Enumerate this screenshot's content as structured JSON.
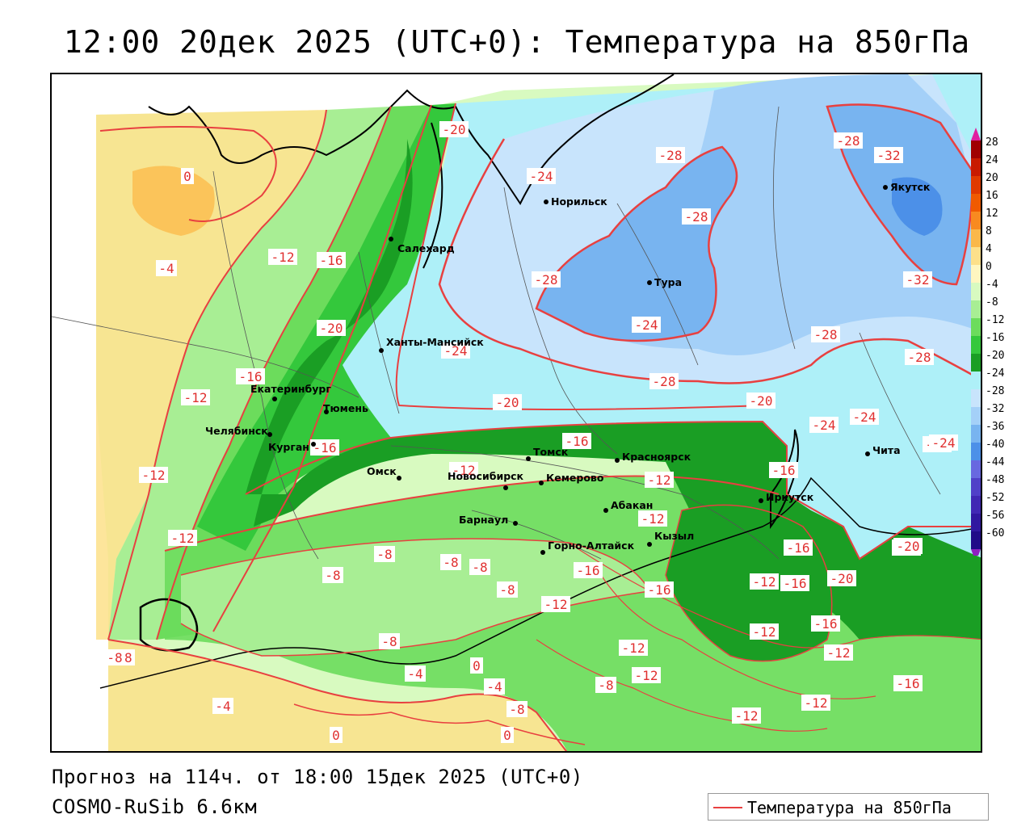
{
  "title": "12:00 20дек 2025 (UTC+0): Температура на 850гПа",
  "footer": {
    "forecast": "Прогноз на 114ч. от 18:00 15дек 2025 (UTC+0)",
    "model": "COSMO-RuSib 6.6км"
  },
  "legend": {
    "label": "Температура на 850гПа",
    "line_color": "#e84040"
  },
  "colorbar": {
    "levels": [
      "28",
      "24",
      "20",
      "16",
      "12",
      "8",
      "4",
      "0",
      "-4",
      "-8",
      "-12",
      "-16",
      "-20",
      "-24",
      "-28",
      "-32",
      "-36",
      "-40",
      "-44",
      "-48",
      "-52",
      "-56",
      "-60"
    ],
    "colors": [
      "#a00000",
      "#c81a00",
      "#e03a00",
      "#f05a00",
      "#f88a20",
      "#fab84a",
      "#fde08a",
      "#fff6c0",
      "#d8fac0",
      "#a8ee94",
      "#6cdc5c",
      "#34c83c",
      "#1a9e24",
      "#aef0f8",
      "#c8e4fc",
      "#a4d0f8",
      "#78b4f0",
      "#4c90e8",
      "#6868e0",
      "#5040c8",
      "#4028b4",
      "#3018a0",
      "#200c88"
    ],
    "top_arrow_color": "#e020a0",
    "bottom_arrow_color": "#9020c0"
  },
  "cities": [
    {
      "name": "Салехард"
    },
    {
      "name": "Норильск"
    },
    {
      "name": "Якутск"
    },
    {
      "name": "Тура"
    },
    {
      "name": "Ханты-Мансийск"
    },
    {
      "name": "Екатеринбург"
    },
    {
      "name": "Тюмень"
    },
    {
      "name": "Челябинск"
    },
    {
      "name": "Курган"
    },
    {
      "name": "Омск"
    },
    {
      "name": "Томск"
    },
    {
      "name": "Красноярск"
    },
    {
      "name": "Новосибирск"
    },
    {
      "name": "Кемерово"
    },
    {
      "name": "Абакан"
    },
    {
      "name": "Барнаул"
    },
    {
      "name": "Иркутск"
    },
    {
      "name": "Чита"
    },
    {
      "name": "Кызыл"
    },
    {
      "name": "Горно-Алтайск"
    }
  ],
  "isotherm_labels": [
    "0",
    "-4",
    "-12",
    "-16",
    "-20",
    "-24",
    "-28",
    "-28",
    "-32",
    "-28",
    "-32",
    "-28",
    "-20",
    "-24",
    "-28",
    "-24",
    "-20",
    "-20",
    "-28",
    "-28",
    "-24",
    "-24",
    "-16",
    "-12",
    "-16",
    "-16",
    "-12",
    "-12",
    "-12",
    "-16",
    "-20",
    "-8",
    "-8",
    "-8",
    "-8",
    "-8",
    "-8",
    "-12",
    "-16",
    "-16",
    "-12",
    "-16",
    "-20",
    "-12",
    "-16",
    "-12",
    "-12",
    "-12",
    "-8",
    "-4",
    "0",
    "-4",
    "-8",
    "-8",
    "-4",
    "0",
    "0",
    "-12",
    "-12",
    "-16",
    "-12",
    "-16",
    "-12",
    "-8",
    "-24",
    "-20",
    "-24"
  ]
}
